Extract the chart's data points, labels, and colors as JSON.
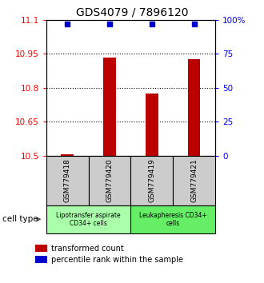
{
  "title": "GDS4079 / 7896120",
  "samples": [
    "GSM779418",
    "GSM779420",
    "GSM779419",
    "GSM779421"
  ],
  "bar_values": [
    10.505,
    10.935,
    10.775,
    10.925
  ],
  "percentile_values": [
    97,
    97,
    97,
    97
  ],
  "ylim_left": [
    10.5,
    11.1
  ],
  "ylim_right": [
    0,
    100
  ],
  "yticks_left": [
    10.5,
    10.65,
    10.8,
    10.95,
    11.1
  ],
  "ytick_labels_left": [
    "10.5",
    "10.65",
    "10.8",
    "10.95",
    "11.1"
  ],
  "yticks_right": [
    0,
    25,
    50,
    75,
    100
  ],
  "ytick_labels_right": [
    "0",
    "25",
    "50",
    "75",
    "100%"
  ],
  "bar_color": "#bb0000",
  "dot_color": "#0000cc",
  "grid_color": "#000000",
  "cell_type_groups": [
    {
      "label": "Lipotransfer aspirate\nCD34+ cells",
      "color": "#aaffaa",
      "samples": [
        0,
        1
      ]
    },
    {
      "label": "Leukapheresis CD34+\ncells",
      "color": "#66ee66",
      "samples": [
        2,
        3
      ]
    }
  ],
  "sample_box_color": "#cccccc",
  "cell_type_label": "cell type",
  "legend_bar_label": "transformed count",
  "legend_dot_label": "percentile rank within the sample",
  "title_fontsize": 10,
  "tick_fontsize": 7.5,
  "legend_fontsize": 7,
  "bar_width": 0.3
}
